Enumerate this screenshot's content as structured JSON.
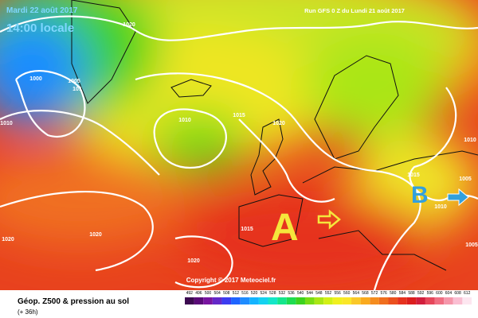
{
  "header": {
    "date": "Mardi 22 août 2017",
    "time": "14:00 locale",
    "run": "Run GFS 0 Z du Lundi 21 août 2017"
  },
  "map": {
    "isobar_labels": [
      "1020",
      "1000",
      "1005",
      "101",
      "1010",
      "1010",
      "1015",
      "1020",
      "1015",
      "1005",
      "1010",
      "1005",
      "1020",
      "1015",
      "1020",
      "1020",
      "1010"
    ],
    "high": "A",
    "low": "B",
    "copyright": "Copyright © 2017 Meteociel.fr"
  },
  "footer": {
    "title": "Géop. Z500 & pression au sol",
    "lead": "(+ 36h)"
  },
  "colorbar": {
    "labels": [
      492,
      496,
      500,
      504,
      508,
      512,
      516,
      520,
      524,
      528,
      532,
      536,
      540,
      544,
      548,
      552,
      556,
      560,
      564,
      568,
      572,
      576,
      580,
      584,
      588,
      592,
      596,
      600,
      604,
      608,
      612
    ],
    "colors": [
      "#3c0a50",
      "#5a0a78",
      "#7814a0",
      "#6428c8",
      "#3c3cf0",
      "#1e64ff",
      "#1e8cff",
      "#14b4ff",
      "#14d2f0",
      "#14e6c8",
      "#14e68c",
      "#1edc50",
      "#3cd21e",
      "#78dc14",
      "#aae614",
      "#d2f014",
      "#f0f01e",
      "#fae628",
      "#fac828",
      "#faaa1e",
      "#f58c1e",
      "#f06e1e",
      "#eb501e",
      "#e6321e",
      "#dc1e1e",
      "#d21e3c",
      "#e6465a",
      "#f06e82",
      "#f596aa",
      "#fabed2",
      "#fde6f0"
    ]
  }
}
